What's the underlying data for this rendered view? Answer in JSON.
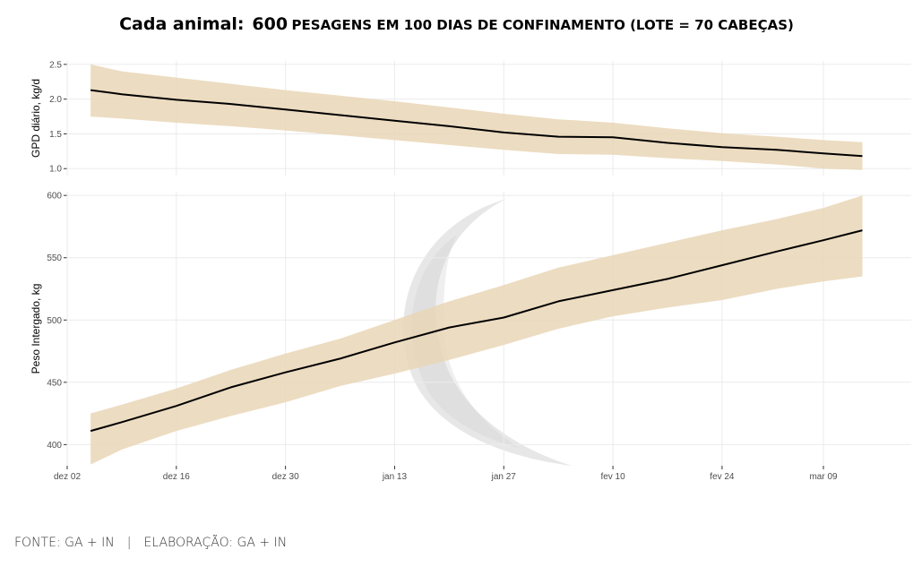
{
  "title": {
    "lead": "Cada animal:",
    "count": "600",
    "rest": "PESAGENS EM 100 DIAS DE CONFINAMENTO (LOTE = 70 CABEÇAS)"
  },
  "footer": {
    "source": "FONTE: GA + IN",
    "separator": "|",
    "credit": "ELABORAÇÃO: GA + IN"
  },
  "colors": {
    "band": "#e9d6b6",
    "line": "#000000",
    "grid": "#ebebeb",
    "watermark": "#d0d0d0"
  },
  "chart_data": [
    {
      "type": "line",
      "title": "",
      "xlabel": "",
      "ylabel": "GPD diário, kg/d",
      "x_ticks": [
        "dez 02",
        "dez 16",
        "dez 30",
        "jan 13",
        "jan 27",
        "fev 10",
        "fev 24",
        "mar 09"
      ],
      "y_ticks": [
        "1.0",
        "1.5",
        "2.0",
        "2.5"
      ],
      "ylim": [
        0.9,
        2.55
      ],
      "grid": true,
      "x": [
        "dez 05",
        "dez 09",
        "dez 16",
        "dez 23",
        "dez 30",
        "jan 06",
        "jan 13",
        "jan 20",
        "jan 27",
        "fev 03",
        "fev 10",
        "fev 17",
        "fev 24",
        "mar 03",
        "mar 09",
        "mar 14"
      ],
      "series": [
        {
          "role": "mean",
          "values": [
            2.13,
            2.07,
            1.99,
            1.93,
            1.85,
            1.77,
            1.69,
            1.61,
            1.52,
            1.46,
            1.45,
            1.37,
            1.31,
            1.27,
            1.22,
            1.18
          ]
        },
        {
          "role": "upper",
          "values": [
            2.5,
            2.4,
            2.31,
            2.22,
            2.13,
            2.05,
            1.97,
            1.88,
            1.79,
            1.71,
            1.66,
            1.58,
            1.51,
            1.46,
            1.41,
            1.38
          ]
        },
        {
          "role": "lower",
          "values": [
            1.75,
            1.72,
            1.66,
            1.61,
            1.55,
            1.48,
            1.41,
            1.34,
            1.27,
            1.21,
            1.2,
            1.15,
            1.11,
            1.06,
            1.0,
            0.98
          ]
        }
      ]
    },
    {
      "type": "line",
      "title": "",
      "xlabel": "",
      "ylabel": "Peso Intergado, kg",
      "x_ticks": [
        "dez 02",
        "dez 16",
        "dez 30",
        "jan 13",
        "jan 27",
        "fev 10",
        "fev 24",
        "mar 09"
      ],
      "y_ticks": [
        "400",
        "450",
        "500",
        "550",
        "600"
      ],
      "ylim": [
        383,
        603
      ],
      "grid": true,
      "x": [
        "dez 05",
        "dez 09",
        "dez 16",
        "dez 23",
        "dez 30",
        "jan 06",
        "jan 13",
        "jan 20",
        "jan 27",
        "fev 03",
        "fev 10",
        "fev 17",
        "fev 24",
        "mar 03",
        "mar 09",
        "mar 14"
      ],
      "series": [
        {
          "role": "mean",
          "values": [
            411,
            418,
            431,
            446,
            458,
            469,
            482,
            494,
            502,
            515,
            524,
            533,
            544,
            555,
            564,
            572
          ]
        },
        {
          "role": "upper",
          "values": [
            425,
            432,
            445,
            460,
            473,
            485,
            500,
            515,
            528,
            542,
            552,
            562,
            572,
            581,
            590,
            600
          ]
        },
        {
          "role": "lower",
          "values": [
            384,
            396,
            411,
            423,
            434,
            447,
            457,
            468,
            480,
            493,
            503,
            510,
            516,
            525,
            531,
            535
          ]
        }
      ]
    }
  ]
}
